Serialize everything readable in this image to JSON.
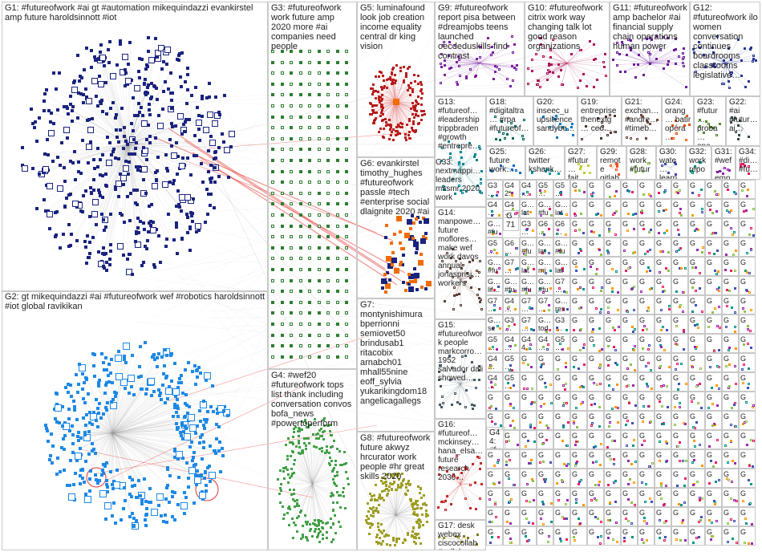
{
  "graph": {
    "groups": [
      {
        "id": "G1",
        "label": "G1: #futureofwork #ai gt #automation mikequindazzi evankirstel amp future haroldsinnott #iot",
        "color": "#1a237e"
      },
      {
        "id": "G2",
        "label": "G2: gt mikequindazzi #ai #futureofwork wef #robotics haroldsinnott #iot global ravikikan",
        "color": "#1e88e5"
      },
      {
        "id": "G3",
        "label": "G3: #futureofwork work future amp 2020 more #ai companies need people",
        "color": "#2e7d32"
      },
      {
        "id": "G4",
        "label": "G4: #wef20 #futureofwork tops list thank including conversation convos bofa_news #powertoperform",
        "color": "#43a047"
      },
      {
        "id": "G5",
        "label": "G5: luminafound look job creation income equality central dr king vision",
        "color": "#b71c1c"
      },
      {
        "id": "G6",
        "label": "G6: evankirstel timothy_hughes #futureofwork passle #tech #enterprise social dlaignite 2020 #ai",
        "color": "#ef6c00"
      },
      {
        "id": "G7",
        "label": "G7: montynishimura bperrionni semiovet50 brindusab1 ritacobix arnabch01 mhall55nine eoff_sylvia yukarikingdom18 angelicagallegs",
        "color": "#8d6e63"
      },
      {
        "id": "G8",
        "label": "G8: #futureofwork future akwyz hrcurator work people #hr great skills 2020",
        "color": "#9e9d24"
      },
      {
        "id": "G9",
        "label": "G9: #futureofwork report pisa between #dreamjobs teens launched oecdeduskills find contrast",
        "color": "#7b1fa2"
      },
      {
        "id": "G10",
        "label": "G10: #futureofwork citrix work way changing talk lot good reason organizations",
        "color": "#ad1457"
      },
      {
        "id": "G11",
        "label": "G11: #futureofwork amp bachelor #ai financial supply chain operations human power",
        "color": "#6a1b9a"
      },
      {
        "id": "G12",
        "label": "G12: #futureofwork ilo women conversation continues boardrooms classrooms legislative…",
        "color": "#283593"
      },
      {
        "id": "G13",
        "label": "G13: #futureof… #leadership trippbraden #growth #entrepre…",
        "color": "#00838f"
      },
      {
        "id": "G14",
        "label": "G14: manpowe… future moflores… make wef work davos annual jonasprisi… workers",
        "color": "#5d4037"
      },
      {
        "id": "G15",
        "label": "G15: #futureofwork people markcorro… 1952 salvador dali showed…",
        "color": "#455a64"
      },
      {
        "id": "G16",
        "label": "G16: #futureof… mckinsey… hana_elsa… future research 2030…",
        "color": "#c62828"
      },
      {
        "id": "G17",
        "label": "G17: desk webex ciscocollab #collabora…",
        "color": "#827717"
      },
      {
        "id": "G18",
        "label": "G18: #digitaltra… #rpa #futureof…",
        "color": "#00695c"
      },
      {
        "id": "G19",
        "label": "G19: entreprise thenextg… ceo…",
        "color": "#4e342e"
      },
      {
        "id": "G20",
        "label": "G20: inseec_u upsilience sandybe…",
        "color": "#0277bd"
      },
      {
        "id": "G21",
        "label": "G21: exchan… #andre… #timeb…",
        "color": "#6d4c41"
      },
      {
        "id": "G22",
        "label": "G22: #ai #futur… ai…",
        "color": "#37474f"
      },
      {
        "id": "G23",
        "label": "G23: #futur… proba… one…",
        "color": "#558b2f"
      },
      {
        "id": "G24",
        "label": "G24: orang… batir opéra…",
        "color": "#e65100"
      },
      {
        "id": "G25",
        "label": "G25: future work…",
        "color": "#1565c0"
      },
      {
        "id": "G26",
        "label": "G26: twitter kshank…",
        "color": "#0097a7"
      },
      {
        "id": "G27",
        "label": "G27: #futur… fait…",
        "color": "#c0ca33"
      },
      {
        "id": "G28",
        "label": "G28: work #futur…",
        "color": "#7cb342"
      },
      {
        "id": "G29",
        "label": "G29: remote gitlab…",
        "color": "#f4511e"
      },
      {
        "id": "G30",
        "label": "G30: wate… learn…",
        "color": "#3949ab"
      },
      {
        "id": "G31",
        "label": "G31: #wef… emp…",
        "color": "#8e24aa"
      },
      {
        "id": "G32",
        "label": "G32: work repo…",
        "color": "#00897b"
      },
      {
        "id": "G34",
        "label": "G34: #di… #fu…",
        "color": "#d81b60"
      },
      {
        "id": "G33",
        "label": "G33: nextmappi… leaders mitsmr 2020 work",
        "color": "#6d4c41"
      },
      {
        "id": "G44",
        "label": "G44: #fu… #fu…",
        "color": "#5c6bc0"
      },
      {
        "id": "G71",
        "label": "G71: tre…",
        "color": "#26a69a"
      }
    ],
    "small_group_labels": [
      "G3… #fu… twi…",
      "G42: #fu…",
      "G4… ful…",
      "G5… #fu…",
      "G5… #fu…",
      "G4… #fu…",
      "G4… lat…",
      "G… lat…",
      "G… #fu…",
      "G… lat…",
      "G… #fu…",
      "G3… #fu… #fu…",
      "G6… ov…",
      "G6… #fu…",
      "G5… tho…",
      "G6… ele…",
      "G… #fu…",
      "G… lat…",
      "G… #fu…",
      "G… #fu…",
      "G7… ev…",
      "G… lat…",
      "G… mi…",
      "G… lat…",
      "G… lif…",
      "G… #fu…",
      "G… #fu…",
      "G… #fu…",
      "G7… vie…",
      "G7… #tr…",
      "G4… azi… lav…",
      "G7… am…",
      "G7… da…",
      "G… res…",
      "G… se…",
      "G3… wo…",
      "G7… tod…",
      "G… tod…",
      "G3… wo… ear…",
      "G5… tod…",
      "G4… int…",
      "G44… fol…",
      "G4… ids…",
      "G5… #w…",
      "G4… hi…",
      "G5… blo…",
      "G4… lan…",
      "G5… lat…"
    ],
    "repeated_label": "G"
  },
  "colors": {
    "edge": "#9e9e9e",
    "cross_edge": "#e53935",
    "border": "#c8c8c8",
    "text": "#222222"
  }
}
